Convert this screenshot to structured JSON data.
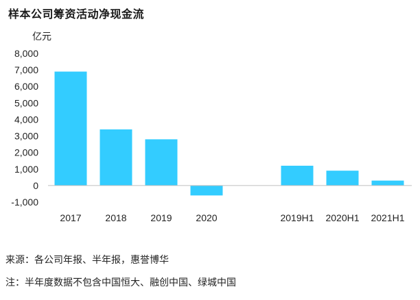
{
  "title": "样本公司筹资活动净现金流",
  "unit_label": "亿元",
  "source_text": "来源：各公司年报、半年报，惠誉博华",
  "note_text": "注：半年度数据不包含中国恒大、融创中国、绿城中国",
  "colors": {
    "bar": "#33CCFF",
    "axis": "#bfbfbf"
  },
  "chart_data": {
    "type": "bar",
    "title": "样本公司筹资活动净现金流",
    "ylabel": "亿元",
    "xlabel": "",
    "categories": [
      "2017",
      "2018",
      "2019",
      "2020",
      "",
      "2019H1",
      "2020H1",
      "2021H1"
    ],
    "values": [
      6900,
      3400,
      2800,
      -600,
      null,
      1200,
      900,
      300
    ],
    "ylim": [
      -1000,
      8000
    ],
    "yticks": [
      8000,
      7000,
      6000,
      5000,
      4000,
      3000,
      2000,
      1000,
      0,
      -1000
    ],
    "ytick_labels": [
      "8,000",
      "7,000",
      "6,000",
      "5,000",
      "4,000",
      "3,000",
      "2,000",
      "1,000",
      "0",
      "-1,000"
    ],
    "grid": false,
    "legend": "none"
  }
}
